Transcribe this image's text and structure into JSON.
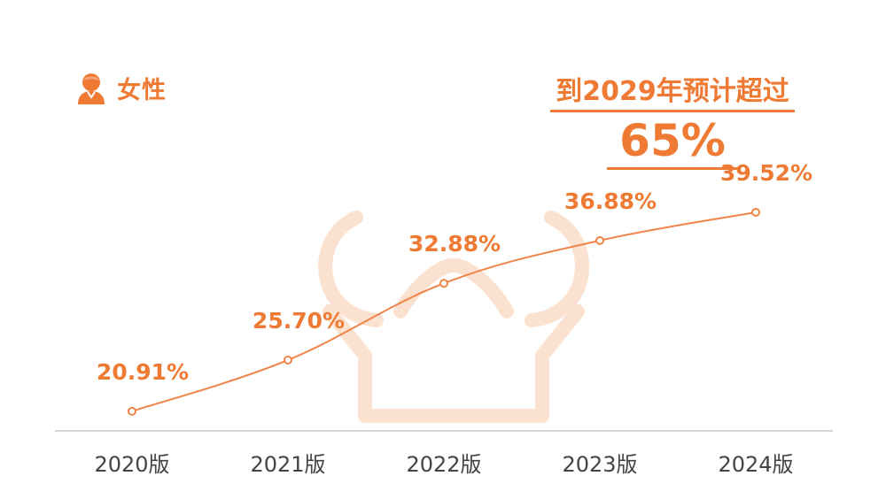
{
  "header": {
    "icon": "person-icon",
    "label": "女性"
  },
  "callout": {
    "line1": "到2029年预计超过",
    "value": "65%"
  },
  "colors": {
    "accent": "#ee7a34",
    "line": "#f08448",
    "watermark": "#fbe2d0",
    "axis_text": "#444444",
    "baseline": "#d4d4d4"
  },
  "chart_data": {
    "type": "line",
    "categories": [
      "2020版",
      "2021版",
      "2022版",
      "2023版",
      "2024版"
    ],
    "values": [
      20.91,
      25.7,
      32.88,
      36.88,
      39.52
    ],
    "data_labels": [
      "20.91%",
      "25.70%",
      "32.88%",
      "36.88%",
      "39.52%"
    ],
    "unit": "%",
    "ylim": [
      18,
      42
    ],
    "grid": false,
    "legend": "none"
  }
}
